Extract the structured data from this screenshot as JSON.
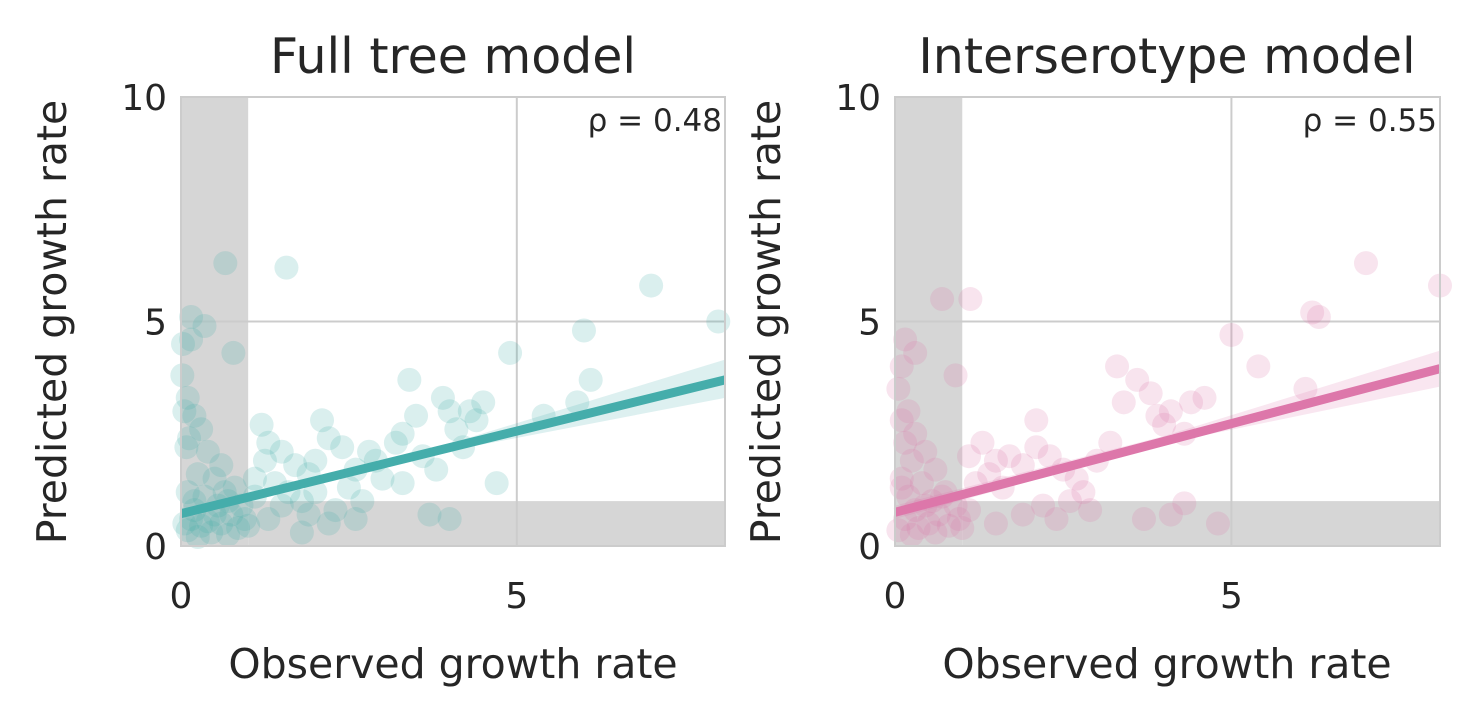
{
  "chart_data": [
    {
      "type": "scatter",
      "title": "Full tree model",
      "xlabel": "Observed growth rate",
      "ylabel": "Predicted growth rate",
      "annotation": "ρ = 0.48",
      "xlim": [
        0,
        8.1
      ],
      "ylim": [
        0,
        10
      ],
      "xticks": [
        "0",
        "5"
      ],
      "yticks": [
        "0",
        "5",
        "10"
      ],
      "xtick_values": [
        0,
        5
      ],
      "ytick_values": [
        0,
        5,
        10
      ],
      "grid": true,
      "color": "#45adab",
      "shaded_threshold": 1,
      "regression": {
        "x": [
          0,
          8.1
        ],
        "y": [
          0.72,
          3.7
        ]
      },
      "confidence_band": {
        "x": [
          0,
          4,
          8.1
        ],
        "upper": [
          0.82,
          2.28,
          4.15
        ],
        "lower": [
          0.62,
          2.12,
          3.3
        ]
      },
      "series": [
        {
          "points": [
            [
              0.66,
              6.3
            ],
            [
              1.57,
              6.2
            ],
            [
              0.15,
              5.1
            ],
            [
              0.35,
              4.9
            ],
            [
              0.15,
              4.6
            ],
            [
              0.03,
              4.5
            ],
            [
              0.78,
              4.3
            ],
            [
              0.02,
              3.8
            ],
            [
              0.1,
              3.3
            ],
            [
              0.05,
              3.0
            ],
            [
              0.2,
              2.9
            ],
            [
              0.3,
              2.6
            ],
            [
              0.12,
              2.4
            ],
            [
              0.08,
              2.2
            ],
            [
              0.4,
              2.1
            ],
            [
              0.6,
              1.8
            ],
            [
              0.25,
              1.6
            ],
            [
              0.5,
              1.5
            ],
            [
              0.8,
              1.3
            ],
            [
              0.1,
              1.2
            ],
            [
              0.35,
              1.1
            ],
            [
              0.7,
              1.0
            ],
            [
              0.9,
              0.9
            ],
            [
              0.2,
              0.8
            ],
            [
              0.5,
              0.7
            ],
            [
              0.15,
              0.6
            ],
            [
              0.6,
              0.5
            ],
            [
              0.3,
              0.45
            ],
            [
              0.85,
              0.4
            ],
            [
              0.1,
              0.35
            ],
            [
              0.45,
              0.3
            ],
            [
              0.7,
              0.25
            ],
            [
              0.25,
              0.2
            ],
            [
              0.95,
              0.6
            ],
            [
              0.55,
              0.9
            ],
            [
              0.05,
              0.5
            ],
            [
              0.4,
              0.55
            ],
            [
              0.75,
              0.7
            ],
            [
              0.2,
              1.0
            ],
            [
              0.65,
              1.2
            ],
            [
              1.2,
              2.7
            ],
            [
              1.3,
              2.3
            ],
            [
              1.5,
              2.1
            ],
            [
              1.25,
              1.9
            ],
            [
              1.7,
              1.8
            ],
            [
              1.9,
              1.6
            ],
            [
              1.1,
              1.5
            ],
            [
              1.4,
              1.4
            ],
            [
              1.6,
              1.2
            ],
            [
              2.1,
              2.8
            ],
            [
              2.2,
              2.4
            ],
            [
              2.4,
              2.2
            ],
            [
              2.0,
              1.9
            ],
            [
              2.6,
              1.7
            ],
            [
              2.8,
              2.1
            ],
            [
              2.5,
              1.3
            ],
            [
              1.8,
              1.0
            ],
            [
              2.3,
              0.8
            ],
            [
              2.6,
              0.6
            ],
            [
              2.2,
              0.5
            ],
            [
              1.9,
              0.7
            ],
            [
              1.5,
              0.9
            ],
            [
              1.1,
              1.1
            ],
            [
              1.3,
              0.6
            ],
            [
              2.9,
              1.9
            ],
            [
              3.0,
              1.5
            ],
            [
              3.2,
              2.3
            ],
            [
              3.3,
              2.5
            ],
            [
              3.4,
              3.7
            ],
            [
              3.5,
              2.9
            ],
            [
              3.3,
              1.4
            ],
            [
              3.6,
              2.0
            ],
            [
              3.8,
              1.7
            ],
            [
              3.9,
              3.3
            ],
            [
              4.0,
              3.0
            ],
            [
              4.1,
              2.6
            ],
            [
              4.2,
              2.2
            ],
            [
              4.3,
              3.0
            ],
            [
              4.4,
              2.8
            ],
            [
              3.7,
              0.7
            ],
            [
              4.0,
              0.6
            ],
            [
              4.7,
              1.4
            ],
            [
              4.5,
              3.2
            ],
            [
              4.9,
              4.3
            ],
            [
              5.4,
              2.9
            ],
            [
              6.1,
              3.7
            ],
            [
              6.0,
              4.8
            ],
            [
              5.9,
              3.2
            ],
            [
              7.0,
              5.8
            ],
            [
              8.0,
              5.0
            ],
            [
              1.0,
              0.45
            ],
            [
              1.8,
              0.3
            ],
            [
              2.0,
              1.2
            ],
            [
              2.7,
              1.0
            ]
          ]
        }
      ]
    },
    {
      "type": "scatter",
      "title": "Interserotype model",
      "xlabel": "Observed growth rate",
      "ylabel": "Predicted growth rate",
      "annotation": "ρ = 0.55",
      "xlim": [
        0,
        8.1
      ],
      "ylim": [
        0,
        10
      ],
      "xticks": [
        "0",
        "5"
      ],
      "yticks": [
        "0",
        "5",
        "10"
      ],
      "xtick_values": [
        0,
        5
      ],
      "ytick_values": [
        0,
        5,
        10
      ],
      "grid": true,
      "color": "#dd77aa",
      "shaded_threshold": 1,
      "regression": {
        "x": [
          0,
          8.1
        ],
        "y": [
          0.75,
          3.95
        ]
      },
      "confidence_band": {
        "x": [
          0,
          4,
          8.1
        ],
        "upper": [
          0.9,
          2.45,
          4.35
        ],
        "lower": [
          0.6,
          2.28,
          3.55
        ]
      },
      "series": [
        {
          "points": [
            [
              0.7,
              5.5
            ],
            [
              1.12,
              5.5
            ],
            [
              0.15,
              4.6
            ],
            [
              0.3,
              4.3
            ],
            [
              0.1,
              4.0
            ],
            [
              0.9,
              3.8
            ],
            [
              0.05,
              3.5
            ],
            [
              0.2,
              3.0
            ],
            [
              0.1,
              2.8
            ],
            [
              0.3,
              2.5
            ],
            [
              0.15,
              2.3
            ],
            [
              0.45,
              2.1
            ],
            [
              0.25,
              1.9
            ],
            [
              0.6,
              1.7
            ],
            [
              0.1,
              1.5
            ],
            [
              0.4,
              1.4
            ],
            [
              0.75,
              1.2
            ],
            [
              0.2,
              1.1
            ],
            [
              0.55,
              1.0
            ],
            [
              0.9,
              0.9
            ],
            [
              0.3,
              0.8
            ],
            [
              0.65,
              0.7
            ],
            [
              0.15,
              0.6
            ],
            [
              0.5,
              0.5
            ],
            [
              0.8,
              0.45
            ],
            [
              0.35,
              0.4
            ],
            [
              0.05,
              0.35
            ],
            [
              0.6,
              0.3
            ],
            [
              0.25,
              0.25
            ],
            [
              0.95,
              0.6
            ],
            [
              0.45,
              0.9
            ],
            [
              0.7,
              1.1
            ],
            [
              0.1,
              1.3
            ],
            [
              1.3,
              2.3
            ],
            [
              1.1,
              2.0
            ],
            [
              1.5,
              1.9
            ],
            [
              1.7,
              2.0
            ],
            [
              1.9,
              1.8
            ],
            [
              2.1,
              2.2
            ],
            [
              1.4,
              1.6
            ],
            [
              1.2,
              1.4
            ],
            [
              1.6,
              1.3
            ],
            [
              2.1,
              2.8
            ],
            [
              2.3,
              2.0
            ],
            [
              2.5,
              1.7
            ],
            [
              2.7,
              1.5
            ],
            [
              2.8,
              1.2
            ],
            [
              2.2,
              0.9
            ],
            [
              1.9,
              0.7
            ],
            [
              2.4,
              0.6
            ],
            [
              1.5,
              0.5
            ],
            [
              1.1,
              0.8
            ],
            [
              3.0,
              1.9
            ],
            [
              3.2,
              2.3
            ],
            [
              3.3,
              4.0
            ],
            [
              3.4,
              3.2
            ],
            [
              3.6,
              3.7
            ],
            [
              3.8,
              3.4
            ],
            [
              3.9,
              2.9
            ],
            [
              4.0,
              2.7
            ],
            [
              4.1,
              3.0
            ],
            [
              4.3,
              2.5
            ],
            [
              4.4,
              3.2
            ],
            [
              4.6,
              3.3
            ],
            [
              3.7,
              0.6
            ],
            [
              4.1,
              0.7
            ],
            [
              4.3,
              0.95
            ],
            [
              4.8,
              0.5
            ],
            [
              5.0,
              4.7
            ],
            [
              5.4,
              4.0
            ],
            [
              6.1,
              3.5
            ],
            [
              6.2,
              5.2
            ],
            [
              6.3,
              5.1
            ],
            [
              7.0,
              6.3
            ],
            [
              8.1,
              5.8
            ],
            [
              1.0,
              0.4
            ],
            [
              2.6,
              1.0
            ],
            [
              2.9,
              0.8
            ]
          ]
        }
      ]
    }
  ]
}
